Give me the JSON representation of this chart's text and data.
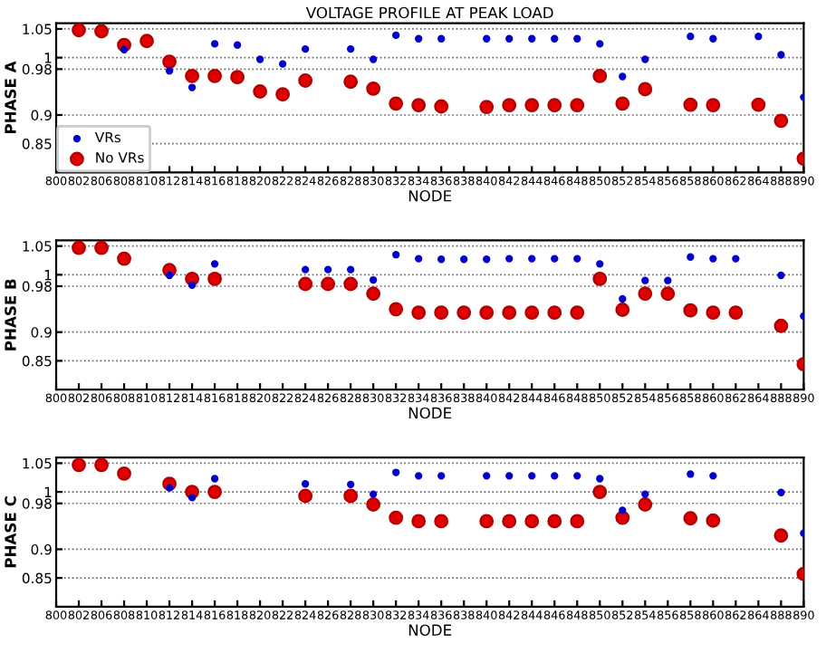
{
  "chart_data": [
    {
      "type": "scatter",
      "title": "VOLTAGE PROFILE AT PEAK LOAD",
      "xlabel": "NODE",
      "ylabel": "PHASE A",
      "categories": [
        "800",
        "802",
        "806",
        "808",
        "810",
        "812",
        "814",
        "816",
        "818",
        "820",
        "822",
        "824",
        "826",
        "828",
        "830",
        "832",
        "834",
        "836",
        "838",
        "840",
        "842",
        "844",
        "846",
        "848",
        "850",
        "852",
        "854",
        "856",
        "858",
        "860",
        "862",
        "864",
        "888",
        "890"
      ],
      "ylim": [
        0.8,
        1.06
      ],
      "yticks": [
        0.85,
        0.9,
        0.98,
        1,
        1.05
      ],
      "grid": "y",
      "legend": "bottom left",
      "series": [
        {
          "name": "VRs",
          "color": "#0000cc",
          "marker": "circle",
          "values": [
            null,
            null,
            null,
            1.014,
            null,
            0.977,
            0.948,
            1.024,
            1.022,
            0.997,
            0.989,
            1.015,
            null,
            1.015,
            0.997,
            1.039,
            1.033,
            1.033,
            null,
            1.033,
            1.033,
            1.033,
            1.033,
            1.033,
            1.024,
            0.967,
            0.997,
            null,
            1.037,
            1.033,
            null,
            1.037,
            1.005,
            0.931
          ]
        },
        {
          "name": "No VRs",
          "color": "#e00000",
          "marker": "circle",
          "values": [
            null,
            1.048,
            1.046,
            1.022,
            1.029,
            0.993,
            0.968,
            0.968,
            0.966,
            0.941,
            0.936,
            0.96,
            null,
            0.958,
            0.946,
            0.92,
            0.917,
            0.915,
            null,
            0.914,
            0.917,
            0.917,
            0.917,
            0.917,
            0.968,
            0.92,
            0.945,
            null,
            0.918,
            0.917,
            null,
            0.918,
            0.89,
            0.824
          ]
        }
      ]
    },
    {
      "type": "scatter",
      "xlabel": "NODE",
      "ylabel": "PHASE B",
      "categories": [
        "800",
        "802",
        "806",
        "808",
        "810",
        "812",
        "814",
        "816",
        "818",
        "820",
        "822",
        "824",
        "826",
        "828",
        "830",
        "832",
        "834",
        "836",
        "838",
        "840",
        "842",
        "844",
        "846",
        "848",
        "850",
        "852",
        "854",
        "856",
        "858",
        "860",
        "862",
        "864",
        "888",
        "890"
      ],
      "ylim": [
        0.8,
        1.06
      ],
      "yticks": [
        0.85,
        0.9,
        0.98,
        1,
        1.05
      ],
      "grid": "y",
      "series": [
        {
          "color": "#0000cc",
          "marker": "circle",
          "values": [
            null,
            null,
            null,
            null,
            null,
            0.999,
            0.982,
            1.019,
            null,
            null,
            null,
            1.009,
            1.009,
            1.009,
            0.991,
            1.035,
            1.028,
            1.027,
            1.027,
            1.027,
            1.028,
            1.028,
            1.028,
            1.028,
            1.019,
            0.958,
            0.99,
            0.99,
            1.031,
            1.028,
            1.028,
            null,
            0.999,
            0.928
          ]
        },
        {
          "color": "#e00000",
          "marker": "circle",
          "values": [
            null,
            1.047,
            1.047,
            1.028,
            null,
            1.008,
            0.993,
            0.993,
            null,
            null,
            null,
            0.984,
            0.984,
            0.984,
            0.967,
            0.94,
            0.934,
            0.934,
            0.934,
            0.934,
            0.934,
            0.934,
            0.934,
            0.934,
            0.993,
            0.939,
            0.967,
            0.967,
            0.938,
            0.934,
            0.934,
            null,
            0.911,
            0.844
          ]
        }
      ]
    },
    {
      "type": "scatter",
      "xlabel": "NODE",
      "ylabel": "PHASE C",
      "categories": [
        "800",
        "802",
        "806",
        "808",
        "810",
        "812",
        "814",
        "816",
        "818",
        "820",
        "822",
        "824",
        "826",
        "828",
        "830",
        "832",
        "834",
        "836",
        "838",
        "840",
        "842",
        "844",
        "846",
        "848",
        "850",
        "852",
        "854",
        "856",
        "858",
        "860",
        "862",
        "864",
        "888",
        "890"
      ],
      "ylim": [
        0.8,
        1.06
      ],
      "yticks": [
        0.85,
        0.9,
        0.98,
        1,
        1.05
      ],
      "grid": "y",
      "series": [
        {
          "color": "#0000cc",
          "marker": "circle",
          "values": [
            null,
            null,
            null,
            null,
            null,
            1.007,
            0.99,
            1.023,
            null,
            null,
            null,
            1.014,
            null,
            1.013,
            0.996,
            1.034,
            1.028,
            1.028,
            null,
            1.028,
            1.028,
            1.028,
            1.028,
            1.028,
            1.023,
            0.968,
            0.996,
            null,
            1.031,
            1.028,
            null,
            null,
            0.999,
            0.928
          ]
        },
        {
          "color": "#e00000",
          "marker": "circle",
          "values": [
            null,
            1.047,
            1.047,
            1.032,
            null,
            1.014,
            1.0,
            1.0,
            null,
            null,
            null,
            0.993,
            null,
            0.993,
            0.978,
            0.955,
            0.949,
            0.949,
            null,
            0.949,
            0.949,
            0.949,
            0.949,
            0.949,
            1.0,
            0.955,
            0.978,
            null,
            0.954,
            0.95,
            null,
            null,
            0.924,
            0.857
          ]
        }
      ]
    }
  ]
}
